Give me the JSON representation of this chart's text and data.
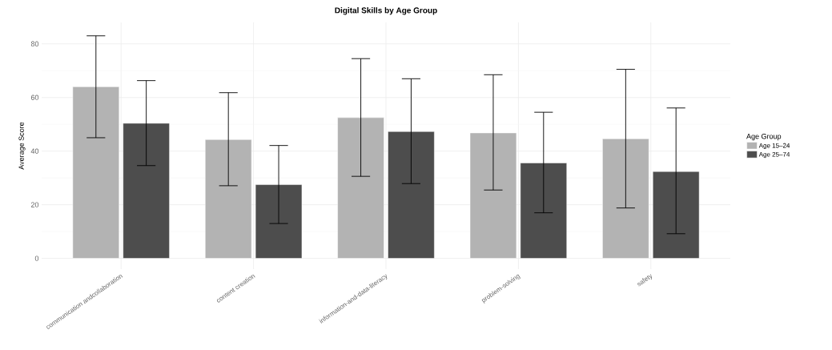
{
  "chart_data": {
    "type": "bar",
    "title": "Digital Skills by Age Group",
    "ylabel": "Average Score",
    "legend_title": "Age Group",
    "categories": [
      "communication andcollaboration",
      "content creation",
      "information-and-data-literacy",
      "problem-solving",
      "safety"
    ],
    "series": [
      {
        "name": "Age 15–24",
        "color": "#b3b3b3",
        "values": [
          64.0,
          44.3,
          52.5,
          46.8,
          44.6
        ],
        "errors": [
          [
            45.0,
            83.0
          ],
          [
            27.1,
            61.8
          ],
          [
            30.6,
            74.5
          ],
          [
            25.5,
            68.5
          ],
          [
            18.8,
            70.5
          ]
        ]
      },
      {
        "name": "Age 25–74",
        "color": "#4d4d4d",
        "values": [
          50.4,
          27.5,
          47.3,
          35.6,
          32.4
        ],
        "errors": [
          [
            34.6,
            66.3
          ],
          [
            13.0,
            42.1
          ],
          [
            27.9,
            67.0
          ],
          [
            17.0,
            54.5
          ],
          [
            9.2,
            56.1
          ]
        ]
      }
    ],
    "ylim": [
      -4,
      88
    ],
    "yticks": [
      0,
      20,
      40,
      60,
      80
    ],
    "grid": true,
    "legend": "right"
  }
}
